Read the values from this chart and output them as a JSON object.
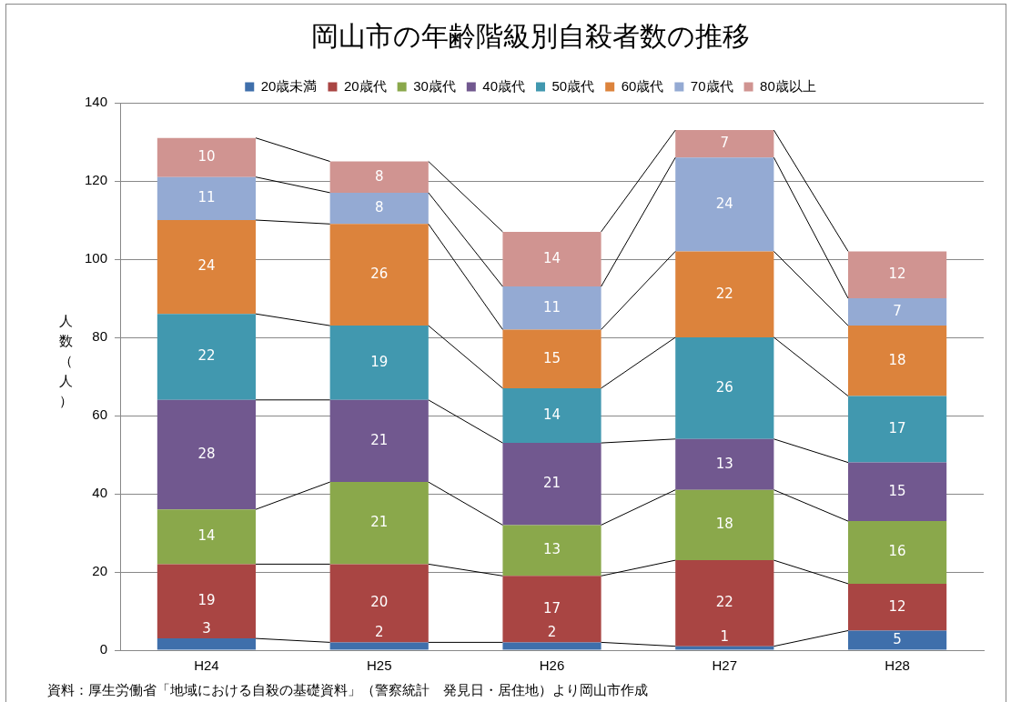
{
  "chart_data": {
    "type": "bar",
    "title": "岡山市の年齢階級別自殺者数の推移",
    "ylabel": "人数（人）",
    "categories": [
      "H24",
      "H25",
      "H26",
      "H27",
      "H28"
    ],
    "stacked": true,
    "series": [
      {
        "name": "20歳未満",
        "color": "#3f6fab",
        "values": [
          3,
          2,
          2,
          1,
          5
        ]
      },
      {
        "name": "20歳代",
        "color": "#a94543",
        "values": [
          19,
          20,
          17,
          22,
          12
        ]
      },
      {
        "name": "30歳代",
        "color": "#8aa84b",
        "values": [
          14,
          21,
          13,
          18,
          16
        ]
      },
      {
        "name": "40歳代",
        "color": "#71588f",
        "values": [
          28,
          21,
          21,
          13,
          15
        ]
      },
      {
        "name": "50歳代",
        "color": "#4198af",
        "values": [
          22,
          19,
          14,
          26,
          17
        ]
      },
      {
        "name": "60歳代",
        "color": "#dc833c",
        "values": [
          24,
          26,
          15,
          22,
          18
        ]
      },
      {
        "name": "70歳代",
        "color": "#94aad3",
        "values": [
          11,
          8,
          11,
          24,
          7
        ]
      },
      {
        "name": "80歳以上",
        "color": "#d09491",
        "values": [
          10,
          8,
          14,
          7,
          12
        ]
      }
    ],
    "ylim": [
      0,
      140
    ],
    "yticks": [
      0,
      20,
      40,
      60,
      80,
      100,
      120,
      140
    ],
    "grid": "y",
    "legend": "top",
    "data_labels": true,
    "annotations": [
      "資料：厚生労働省「地域における自殺の基礎資料」（警察統計　発見日・居住地）より岡山市作成"
    ]
  }
}
